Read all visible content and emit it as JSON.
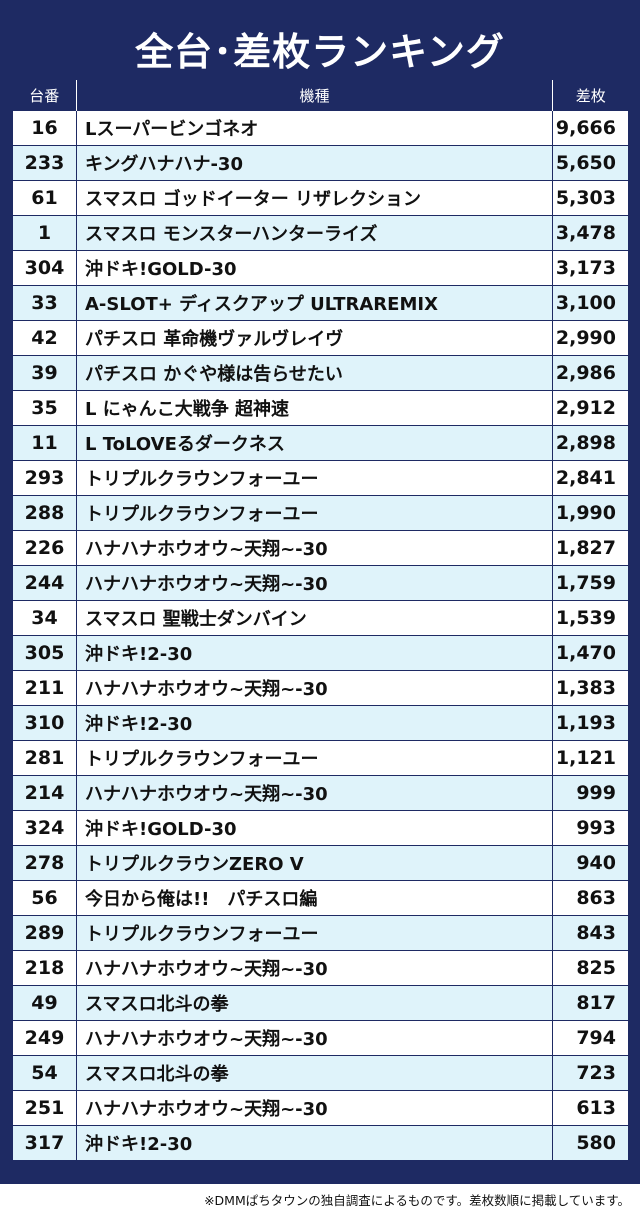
{
  "title": "全台･差枚ランキング",
  "headers": {
    "no": "台番",
    "machine": "機種",
    "diff": "差枚"
  },
  "rows": [
    {
      "no": "16",
      "machine": "Lスーパービンゴネオ",
      "diff": "9,666"
    },
    {
      "no": "233",
      "machine": "キングハナハナ-30",
      "diff": "5,650"
    },
    {
      "no": "61",
      "machine": "スマスロ ゴッドイーター リザレクション",
      "diff": "5,303"
    },
    {
      "no": "1",
      "machine": "スマスロ モンスターハンターライズ",
      "diff": "3,478"
    },
    {
      "no": "304",
      "machine": "沖ドキ!GOLD-30",
      "diff": "3,173"
    },
    {
      "no": "33",
      "machine": "A-SLOT+ ディスクアップ ULTRAREMIX",
      "diff": "3,100"
    },
    {
      "no": "42",
      "machine": "パチスロ 革命機ヴァルヴレイヴ",
      "diff": "2,990"
    },
    {
      "no": "39",
      "machine": "パチスロ かぐや様は告らせたい",
      "diff": "2,986"
    },
    {
      "no": "35",
      "machine": "L にゃんこ大戦争 超神速",
      "diff": "2,912"
    },
    {
      "no": "11",
      "machine": "L ToLOVEるダークネス",
      "diff": "2,898"
    },
    {
      "no": "293",
      "machine": "トリプルクラウンフォーユー",
      "diff": "2,841"
    },
    {
      "no": "288",
      "machine": "トリプルクラウンフォーユー",
      "diff": "1,990"
    },
    {
      "no": "226",
      "machine": "ハナハナホウオウ~天翔~-30",
      "diff": "1,827"
    },
    {
      "no": "244",
      "machine": "ハナハナホウオウ~天翔~-30",
      "diff": "1,759"
    },
    {
      "no": "34",
      "machine": "スマスロ 聖戦士ダンバイン",
      "diff": "1,539"
    },
    {
      "no": "305",
      "machine": "沖ドキ!2-30",
      "diff": "1,470"
    },
    {
      "no": "211",
      "machine": "ハナハナホウオウ~天翔~-30",
      "diff": "1,383"
    },
    {
      "no": "310",
      "machine": "沖ドキ!2-30",
      "diff": "1,193"
    },
    {
      "no": "281",
      "machine": "トリプルクラウンフォーユー",
      "diff": "1,121"
    },
    {
      "no": "214",
      "machine": "ハナハナホウオウ~天翔~-30",
      "diff": "999"
    },
    {
      "no": "324",
      "machine": "沖ドキ!GOLD-30",
      "diff": "993"
    },
    {
      "no": "278",
      "machine": "トリプルクラウンZERO V",
      "diff": "940"
    },
    {
      "no": "56",
      "machine": "今日から俺は!!　パチスロ編",
      "diff": "863"
    },
    {
      "no": "289",
      "machine": "トリプルクラウンフォーユー",
      "diff": "843"
    },
    {
      "no": "218",
      "machine": "ハナハナホウオウ~天翔~-30",
      "diff": "825"
    },
    {
      "no": "49",
      "machine": "スマスロ北斗の拳",
      "diff": "817"
    },
    {
      "no": "249",
      "machine": "ハナハナホウオウ~天翔~-30",
      "diff": "794"
    },
    {
      "no": "54",
      "machine": "スマスロ北斗の拳",
      "diff": "723"
    },
    {
      "no": "251",
      "machine": "ハナハナホウオウ~天翔~-30",
      "diff": "613"
    },
    {
      "no": "317",
      "machine": "沖ドキ!2-30",
      "diff": "580"
    }
  ],
  "footnote": "※DMMぱちタウンの独自調査によるものです。差枚数順に掲載しています。",
  "colors": {
    "navy": "#1e2a63",
    "stripe": "#dff3fa"
  }
}
